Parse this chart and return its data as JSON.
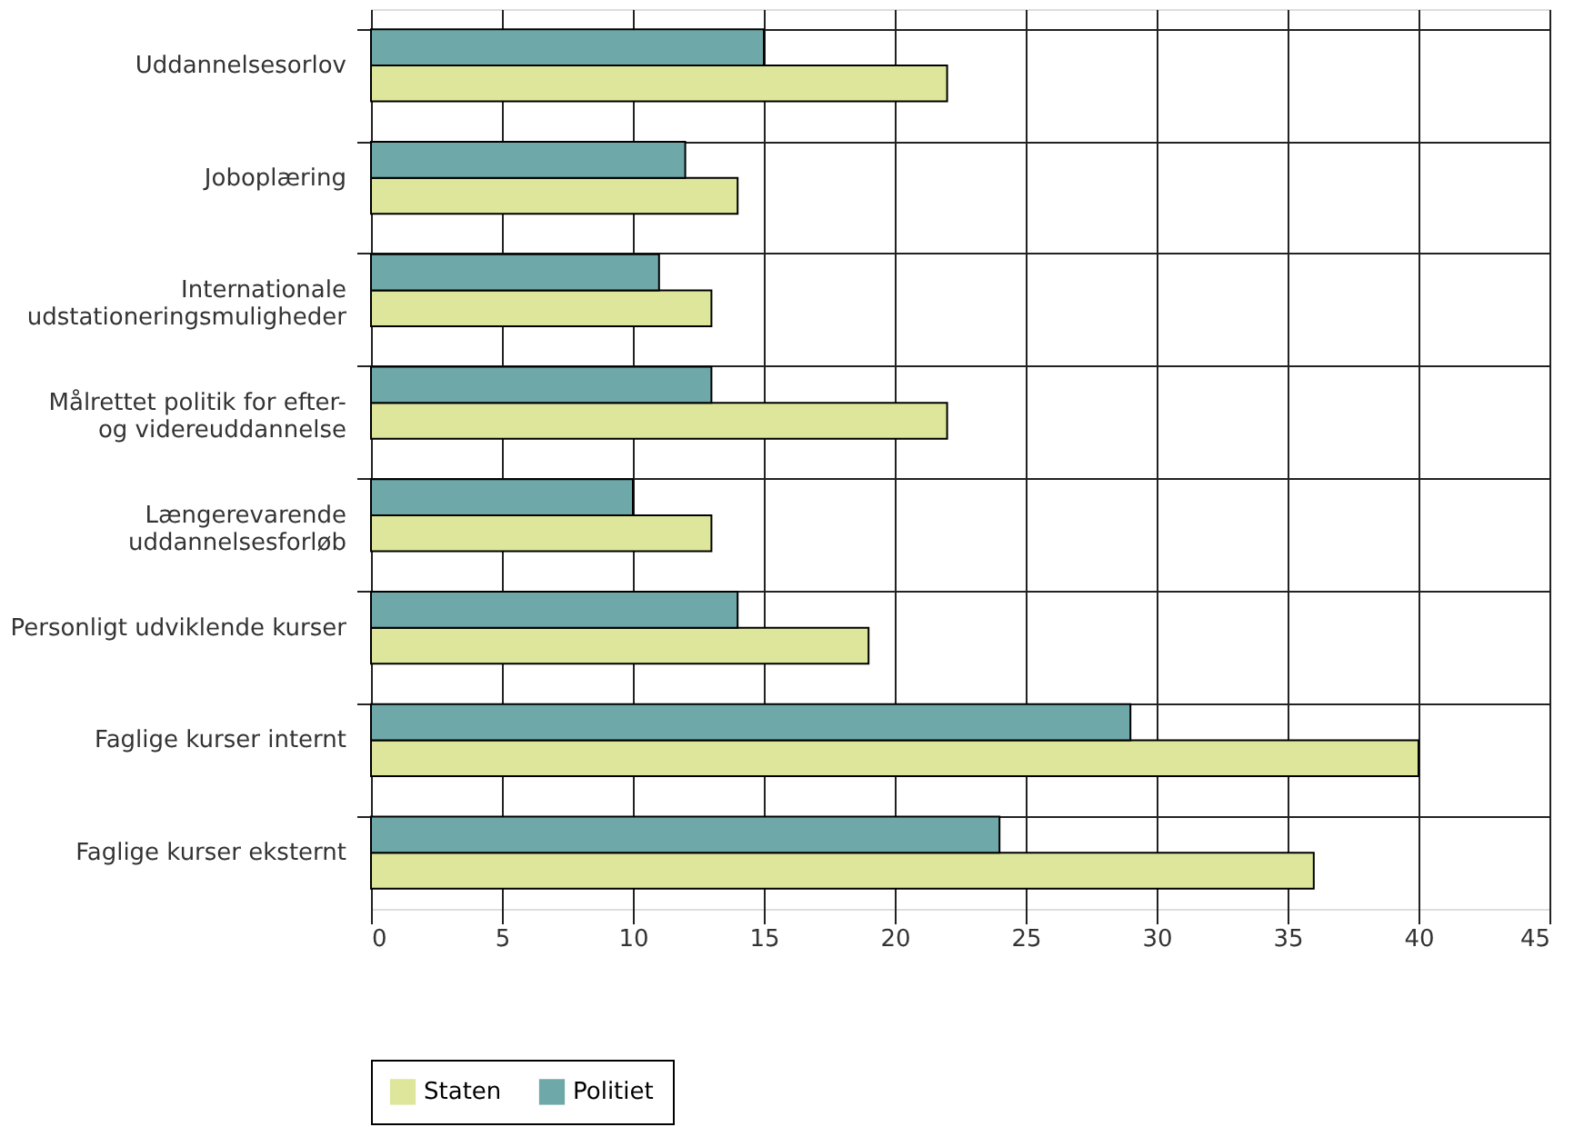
{
  "chart_data": {
    "type": "bar",
    "orientation": "horizontal",
    "categories": [
      "Uddannelsesorlov",
      "Joboplæring",
      "Internationale\nudstationeringsmuligheder",
      "Målrettet politik for efter-\nog videreuddannelse",
      "Længerevarende\nuddannelsesforløb",
      "Personligt udviklende kurser",
      "Faglige kurser internt",
      "Faglige kurser eksternt"
    ],
    "series": [
      {
        "name": "Staten",
        "color": "#dde69a",
        "values": [
          22,
          14,
          13,
          22,
          13,
          19,
          40,
          36
        ]
      },
      {
        "name": "Politiet",
        "color": "#6fa8a8",
        "values": [
          15,
          12,
          11,
          13,
          10,
          14,
          29,
          24
        ]
      }
    ],
    "xlim": [
      0,
      45
    ],
    "xticks": [
      0,
      5,
      10,
      15,
      20,
      25,
      30,
      35,
      40,
      45
    ],
    "grid": true,
    "legend": "bottom"
  }
}
